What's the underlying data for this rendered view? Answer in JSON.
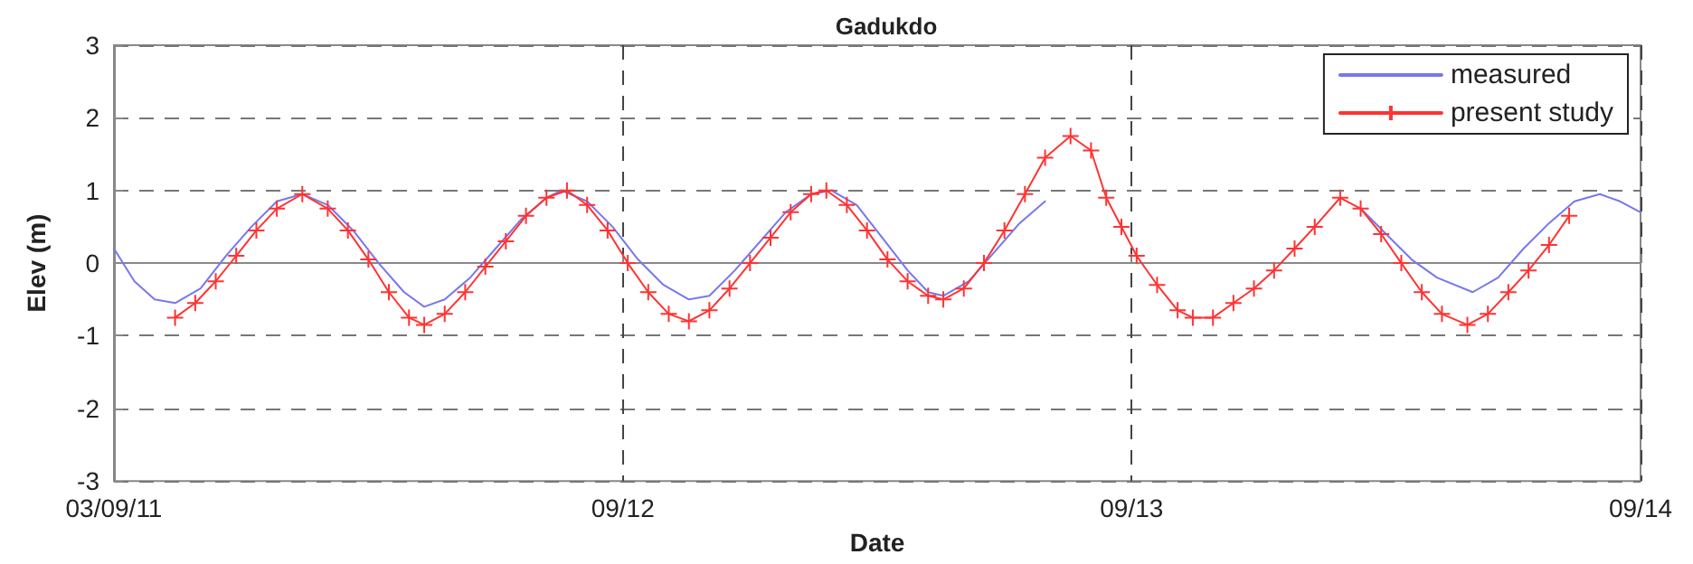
{
  "chart_data": {
    "type": "line",
    "title": "Gadukdo",
    "xlabel": "Date",
    "ylabel": "Elev (m)",
    "xlim": [
      "--09-11",
      "--09-14"
    ],
    "xticks": [
      {
        "value": "--09-11",
        "label": "03/09/11"
      },
      {
        "value": "--09-12",
        "label": "09/12"
      },
      {
        "value": "--09-13",
        "label": "09/13"
      },
      {
        "value": "--09-14",
        "label": "09/14"
      }
    ],
    "ylim": [
      -3,
      3
    ],
    "yticks": [
      -3,
      -2,
      -1,
      0,
      1,
      2,
      3
    ],
    "grid": true,
    "legend": "top right",
    "line_style": "solid",
    "series": [
      {
        "name": "measured",
        "color": "#7777ee",
        "marker": "none",
        "x": [
          "--09-11T00:00",
          "--09-11T00:58",
          "--09-11T01:55",
          "--09-11T02:53",
          "--09-11T04:05",
          "--09-11T05:17",
          "--09-11T06:29",
          "--09-11T07:41",
          "--09-11T08:53",
          "--09-11T10:05",
          "--09-11T11:17",
          "--09-11T12:29",
          "--09-11T13:41",
          "--09-11T14:38",
          "--09-11T15:36",
          "--09-11T16:48",
          "--09-11T18:00",
          "--09-11T19:12",
          "--09-11T20:24",
          "--09-11T21:07",
          "--09-11T22:19",
          "--09-11T23:31",
          "--09-12T00:43",
          "--09-12T01:55",
          "--09-12T03:07",
          "--09-12T04:05",
          "--09-12T05:17",
          "--09-12T06:29",
          "--09-12T07:41",
          "--09-12T08:53",
          "--09-12T09:50",
          "--09-12T11:02",
          "--09-12T12:14",
          "--09-12T13:26",
          "--09-12T14:24",
          "--09-12T15:07",
          "--09-12T16:19",
          "--09-12T17:31",
          "--09-12T18:43",
          "--09-12T19:55",
          "--09-12T21:36",
          "--09-13T10:48",
          "--09-13T12:00",
          "--09-13T13:12",
          "--09-13T14:24",
          "--09-13T16:05",
          "--09-13T17:17",
          "--09-13T18:29",
          "--09-13T19:41",
          "--09-13T20:53",
          "--09-13T22:05",
          "--09-13T23:02",
          "--09-14T00:00"
        ],
        "values": [
          0.2,
          -0.25,
          -0.5,
          -0.55,
          -0.35,
          0.1,
          0.5,
          0.85,
          0.95,
          0.8,
          0.45,
          0.0,
          -0.4,
          -0.6,
          -0.5,
          -0.2,
          0.2,
          0.6,
          0.9,
          1.0,
          0.85,
          0.5,
          0.05,
          -0.3,
          -0.5,
          -0.45,
          -0.1,
          0.3,
          0.7,
          0.95,
          1.0,
          0.8,
          0.35,
          -0.1,
          -0.4,
          -0.45,
          -0.25,
          0.15,
          0.55,
          0.85,
          null,
          0.75,
          0.4,
          0.05,
          -0.2,
          -0.4,
          -0.2,
          0.2,
          0.55,
          0.85,
          0.95,
          0.85,
          0.7
        ]
      },
      {
        "name": "present study",
        "color": "#ff3333",
        "marker": "cross",
        "x": [
          "--09-11T02:53",
          "--09-11T03:50",
          "--09-11T04:48",
          "--09-11T05:46",
          "--09-11T06:43",
          "--09-11T07:41",
          "--09-11T08:53",
          "--09-11T10:05",
          "--09-11T11:02",
          "--09-11T12:00",
          "--09-11T12:58",
          "--09-11T13:55",
          "--09-11T14:38",
          "--09-11T15:36",
          "--09-11T16:34",
          "--09-11T17:31",
          "--09-11T18:29",
          "--09-11T19:26",
          "--09-11T20:24",
          "--09-11T21:22",
          "--09-11T22:19",
          "--09-11T23:17",
          "--09-12T00:14",
          "--09-12T01:12",
          "--09-12T02:10",
          "--09-12T03:07",
          "--09-12T04:05",
          "--09-12T05:02",
          "--09-12T06:00",
          "--09-12T06:58",
          "--09-12T07:55",
          "--09-12T08:53",
          "--09-12T09:36",
          "--09-12T10:34",
          "--09-12T11:31",
          "--09-12T12:29",
          "--09-12T13:26",
          "--09-12T14:24",
          "--09-12T15:07",
          "--09-12T16:05",
          "--09-12T17:02",
          "--09-12T18:00",
          "--09-12T18:58",
          "--09-12T19:55",
          "--09-12T21:07",
          "--09-12T22:05",
          "--09-12T22:48",
          "--09-12T23:31",
          "--09-13T00:14",
          "--09-13T01:12",
          "--09-13T02:10",
          "--09-13T02:53",
          "--09-13T03:50",
          "--09-13T04:48",
          "--09-13T05:46",
          "--09-13T06:43",
          "--09-13T07:41",
          "--09-13T08:38",
          "--09-13T09:50",
          "--09-13T10:48",
          "--09-13T11:46",
          "--09-13T12:43",
          "--09-13T13:41",
          "--09-13T14:38",
          "--09-13T15:50",
          "--09-13T16:48",
          "--09-13T17:46",
          "--09-13T18:43",
          "--09-13T19:41",
          "--09-13T20:38"
        ],
        "values": [
          -0.75,
          -0.55,
          -0.25,
          0.1,
          0.45,
          0.75,
          0.95,
          0.75,
          0.45,
          0.05,
          -0.4,
          -0.75,
          -0.85,
          -0.7,
          -0.4,
          -0.05,
          0.3,
          0.65,
          0.9,
          1.0,
          0.8,
          0.45,
          0.0,
          -0.4,
          -0.7,
          -0.8,
          -0.65,
          -0.35,
          0.0,
          0.35,
          0.7,
          0.95,
          1.0,
          0.8,
          0.45,
          0.05,
          -0.25,
          -0.45,
          -0.5,
          -0.35,
          0.0,
          0.45,
          0.95,
          1.45,
          1.75,
          1.55,
          0.9,
          0.5,
          0.1,
          -0.3,
          -0.65,
          -0.75,
          -0.75,
          -0.55,
          -0.35,
          -0.1,
          0.2,
          0.5,
          0.9,
          0.75,
          0.4,
          0.0,
          -0.4,
          -0.7,
          -0.85,
          -0.7,
          -0.4,
          -0.1,
          0.25,
          0.65
        ]
      }
    ]
  }
}
